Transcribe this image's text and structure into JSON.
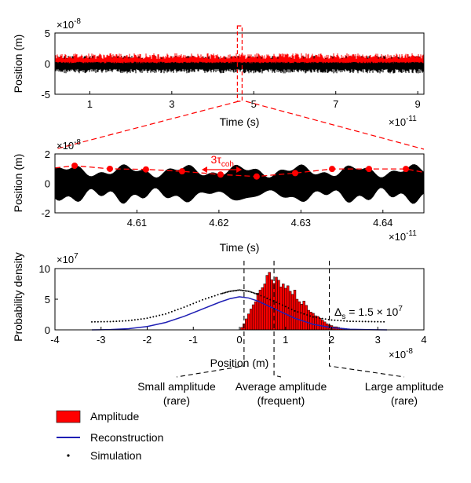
{
  "chart_data": [
    {
      "type": "line",
      "panel": "top",
      "xlabel": "Time (s)",
      "x_multiplier": "×10",
      "x_multiplier_exp": "-11",
      "ylabel": "Position (m)",
      "y_multiplier": "×10",
      "y_multiplier_exp": "-8",
      "xlim": [
        0.15,
        9.15
      ],
      "ylim": [
        -5,
        5
      ],
      "xticks": [
        "1",
        "3",
        "5",
        "7",
        "9"
      ],
      "yticks": [
        "5",
        "0",
        "-5"
      ],
      "series": [
        {
          "role": "signal",
          "color": "#000000",
          "envelope": [
            -1.6,
            1.6
          ]
        },
        {
          "role": "amplitude",
          "color": "#ff0000",
          "envelope": [
            0.3,
            1.7
          ]
        }
      ],
      "zoom_window": [
        4.6,
        4.65
      ],
      "zoom_box_color": "#ff0000"
    },
    {
      "type": "line",
      "panel": "zoom",
      "xlabel": "Time (s)",
      "x_multiplier": "×10",
      "x_multiplier_exp": "-11",
      "ylabel": "Position (m)",
      "y_multiplier": "×10",
      "y_multiplier_exp": "-8",
      "xlim": [
        4.6,
        4.645
      ],
      "ylim": [
        -2,
        2
      ],
      "xticks": [
        "4.61",
        "4.62",
        "4.63",
        "4.64"
      ],
      "yticks": [
        "2",
        "0",
        "-2"
      ],
      "amplitude_points": {
        "color": "#ff0000",
        "x": [
          4.6024,
          4.6067,
          4.6111,
          4.6155,
          4.6202,
          4.6246,
          4.6293,
          4.6338,
          4.6383,
          4.6428
        ],
        "y": [
          1.2,
          0.99,
          0.95,
          0.82,
          0.6,
          0.47,
          0.7,
          0.98,
          0.98,
          0.98
        ]
      },
      "annotation": {
        "text": "3τ",
        "subscript": "coh",
        "color": "#ff0000",
        "span": [
          4.6179,
          4.6228
        ]
      }
    },
    {
      "type": "bar",
      "panel": "histogram",
      "xlabel": "Position (m)",
      "x_multiplier": "×10",
      "x_multiplier_exp": "-8",
      "ylabel": "Probability density",
      "y_multiplier": "×10",
      "y_multiplier_exp": "7",
      "xlim": [
        -4,
        4
      ],
      "ylim": [
        0,
        10
      ],
      "xticks": [
        "-4",
        "-3",
        "-2",
        "-1",
        "0",
        "1",
        "2",
        "3",
        "4"
      ],
      "yticks": [
        "10",
        "5",
        "0"
      ],
      "series": [
        {
          "name": "Amplitude",
          "type": "bar",
          "color": "#ff0000",
          "bin_width": 0.05,
          "x": [
            0.05,
            0.1,
            0.15,
            0.2,
            0.25,
            0.3,
            0.35,
            0.4,
            0.45,
            0.5,
            0.55,
            0.6,
            0.65,
            0.7,
            0.75,
            0.8,
            0.85,
            0.9,
            0.95,
            1.0,
            1.05,
            1.1,
            1.15,
            1.2,
            1.25,
            1.3,
            1.35,
            1.4,
            1.45,
            1.5,
            1.55,
            1.6,
            1.65,
            1.7,
            1.75,
            1.8,
            1.85,
            1.9,
            1.95,
            2.0,
            2.05,
            2.1,
            2.15,
            2.2,
            2.25,
            2.3,
            2.35
          ],
          "values": [
            0.4,
            1.0,
            1.8,
            2.6,
            3.4,
            4.1,
            4.6,
            6.0,
            6.5,
            6.9,
            7.5,
            8.9,
            9.4,
            8.2,
            7.6,
            8.6,
            8.1,
            7.0,
            7.5,
            6.8,
            7.2,
            6.3,
            5.8,
            6.5,
            5.0,
            4.6,
            4.2,
            4.7,
            4.0,
            3.2,
            2.9,
            2.7,
            2.3,
            2.2,
            1.9,
            1.6,
            1.3,
            1.0,
            0.8,
            0.7,
            0.5,
            0.5,
            0.4,
            0.3,
            0.25,
            0.2,
            0.1
          ]
        },
        {
          "name": "Reconstruction",
          "type": "line",
          "color": "#1f1fb4",
          "x": [
            -3.2,
            -2.8,
            -2.4,
            -2.0,
            -1.6,
            -1.2,
            -0.8,
            -0.4,
            -0.2,
            0.0,
            0.2,
            0.4,
            0.8,
            1.2,
            1.6,
            2.0,
            2.4,
            2.8,
            3.2
          ],
          "y": [
            0.0,
            0.05,
            0.2,
            0.55,
            1.2,
            2.2,
            3.4,
            4.6,
            5.1,
            5.4,
            5.2,
            4.7,
            3.3,
            1.9,
            0.9,
            0.35,
            0.1,
            0.03,
            0.0
          ]
        },
        {
          "name": "Simulation",
          "type": "dotted",
          "color": "#000000",
          "x": [
            -3.2,
            -2.8,
            -2.4,
            -2.0,
            -1.6,
            -1.2,
            -0.8,
            -0.4,
            -0.2,
            0.0,
            0.2,
            0.4,
            0.8,
            1.2,
            1.6,
            2.0,
            2.4,
            2.8,
            3.2
          ],
          "y": [
            1.3,
            1.35,
            1.5,
            1.9,
            2.6,
            3.7,
            4.9,
            5.9,
            6.3,
            6.5,
            6.3,
            5.8,
            4.5,
            3.1,
            2.1,
            1.6,
            1.4,
            1.35,
            1.3
          ]
        }
      ],
      "markers": [
        {
          "x": 0.1,
          "label_line1": "Small amplitude",
          "label_line2": "(rare)"
        },
        {
          "x": 0.75,
          "label_line1": "Average amplitude",
          "label_line2": "(frequent)"
        },
        {
          "x": 1.95,
          "label_line1": "Large amplitude",
          "label_line2": "(rare)"
        }
      ],
      "delta_label": {
        "prefix": "Δ",
        "subscript": "s",
        "equals": " = 1.5 × 10",
        "exp": "7"
      }
    }
  ],
  "legend": [
    {
      "label": "Amplitude",
      "color": "#ff0000",
      "kind": "patch"
    },
    {
      "label": "Reconstruction",
      "color": "#1f1fb4",
      "kind": "line"
    },
    {
      "label": "Simulation",
      "color": "#000000",
      "kind": "dot"
    }
  ]
}
